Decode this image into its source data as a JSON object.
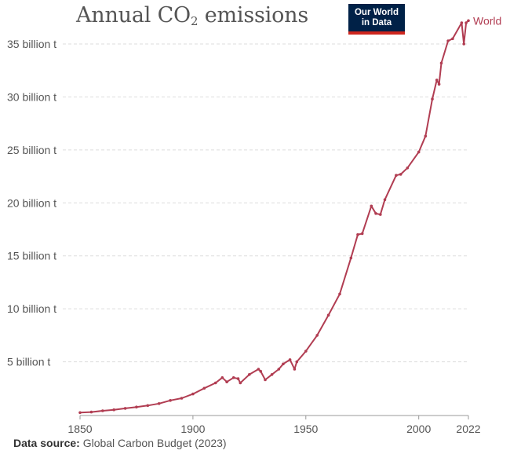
{
  "title": {
    "prefix": "Annual CO",
    "subscript": "2",
    "suffix": " emissions"
  },
  "logo": {
    "line1": "Our World",
    "line2": "in Data"
  },
  "source": {
    "label": "Data source:",
    "text": "Global Carbon Budget (2023)"
  },
  "colors": {
    "series": "#b13d52",
    "grid": "#dddddd",
    "axis_text": "#555555",
    "logo_bg": "#002147",
    "logo_accent": "#ce261e"
  },
  "chart_data": {
    "type": "line",
    "title": "Annual CO₂ emissions",
    "xlabel": "",
    "ylabel": "",
    "xlim": [
      1850,
      2022
    ],
    "ylim": [
      0,
      36000000000
    ],
    "x_ticks": [
      {
        "value": 1850,
        "label": "1850"
      },
      {
        "value": 1900,
        "label": "1900"
      },
      {
        "value": 1950,
        "label": "1950"
      },
      {
        "value": 2000,
        "label": "2000"
      },
      {
        "value": 2022,
        "label": "2022"
      }
    ],
    "y_ticks": [
      {
        "value": 5000000000,
        "label": "5 billion t"
      },
      {
        "value": 10000000000,
        "label": "10 billion t"
      },
      {
        "value": 15000000000,
        "label": "15 billion t"
      },
      {
        "value": 20000000000,
        "label": "20 billion t"
      },
      {
        "value": 25000000000,
        "label": "25 billion t"
      },
      {
        "value": 30000000000,
        "label": "30 billion t"
      },
      {
        "value": 35000000000,
        "label": "35 billion t"
      }
    ],
    "grid": "horizontal dashed",
    "series": [
      {
        "name": "World",
        "x": [
          1850,
          1855,
          1860,
          1865,
          1870,
          1875,
          1880,
          1885,
          1890,
          1895,
          1900,
          1905,
          1910,
          1913,
          1915,
          1918,
          1920,
          1921,
          1925,
          1929,
          1930,
          1932,
          1935,
          1938,
          1940,
          1943,
          1945,
          1946,
          1950,
          1955,
          1960,
          1965,
          1970,
          1973,
          1975,
          1979,
          1981,
          1983,
          1985,
          1990,
          1992,
          1995,
          2000,
          2003,
          2006,
          2008,
          2009,
          2010,
          2013,
          2015,
          2019,
          2020,
          2021,
          2022
        ],
        "y": [
          200000000,
          250000000,
          370000000,
          470000000,
          600000000,
          730000000,
          870000000,
          1050000000,
          1350000000,
          1560000000,
          1960000000,
          2500000000,
          3000000000,
          3500000000,
          3100000000,
          3500000000,
          3400000000,
          3000000000,
          3800000000,
          4300000000,
          4100000000,
          3300000000,
          3800000000,
          4300000000,
          4800000000,
          5200000000,
          4300000000,
          5000000000,
          6000000000,
          7500000000,
          9400000000,
          11400000000,
          14800000000,
          17000000000,
          17100000000,
          19700000000,
          19000000000,
          18900000000,
          20300000000,
          22600000000,
          22700000000,
          23300000000,
          24800000000,
          26300000000,
          29800000000,
          31600000000,
          31200000000,
          33200000000,
          35300000000,
          35500000000,
          37000000000,
          35000000000,
          37000000000,
          37200000000
        ]
      }
    ]
  }
}
